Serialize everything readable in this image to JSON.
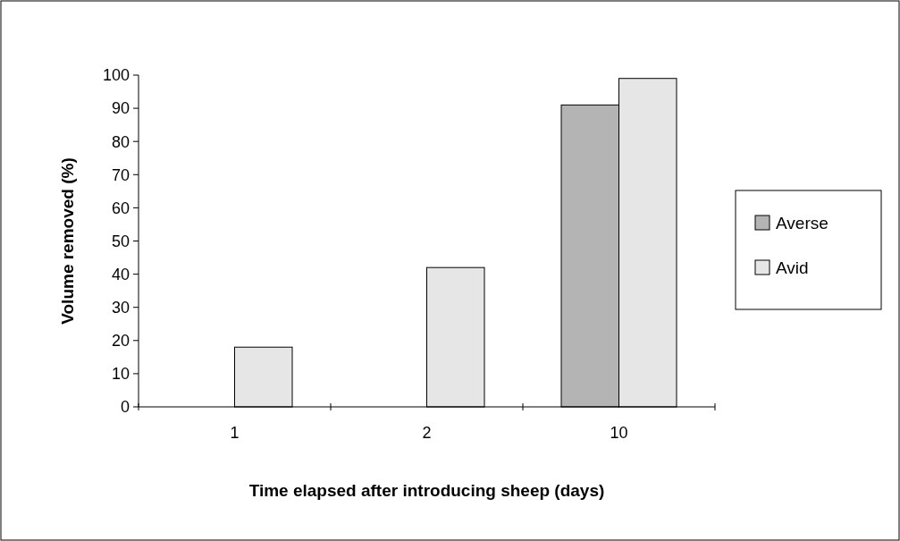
{
  "chart_data": {
    "type": "bar",
    "xlabel": "Time elapsed after introducing sheep (days)",
    "ylabel": "Volume removed (%)",
    "categories": [
      "1",
      "2",
      "10"
    ],
    "series": [
      {
        "name": "Averse",
        "color": "#b4b4b4",
        "values": [
          0,
          0,
          91
        ]
      },
      {
        "name": "Avid",
        "color": "#e6e6e6",
        "values": [
          18,
          42,
          99
        ]
      }
    ],
    "ylim": [
      0,
      100
    ],
    "yticks": [
      0,
      10,
      20,
      30,
      40,
      50,
      60,
      70,
      80,
      90,
      100
    ],
    "legend": "right",
    "grid": false
  }
}
